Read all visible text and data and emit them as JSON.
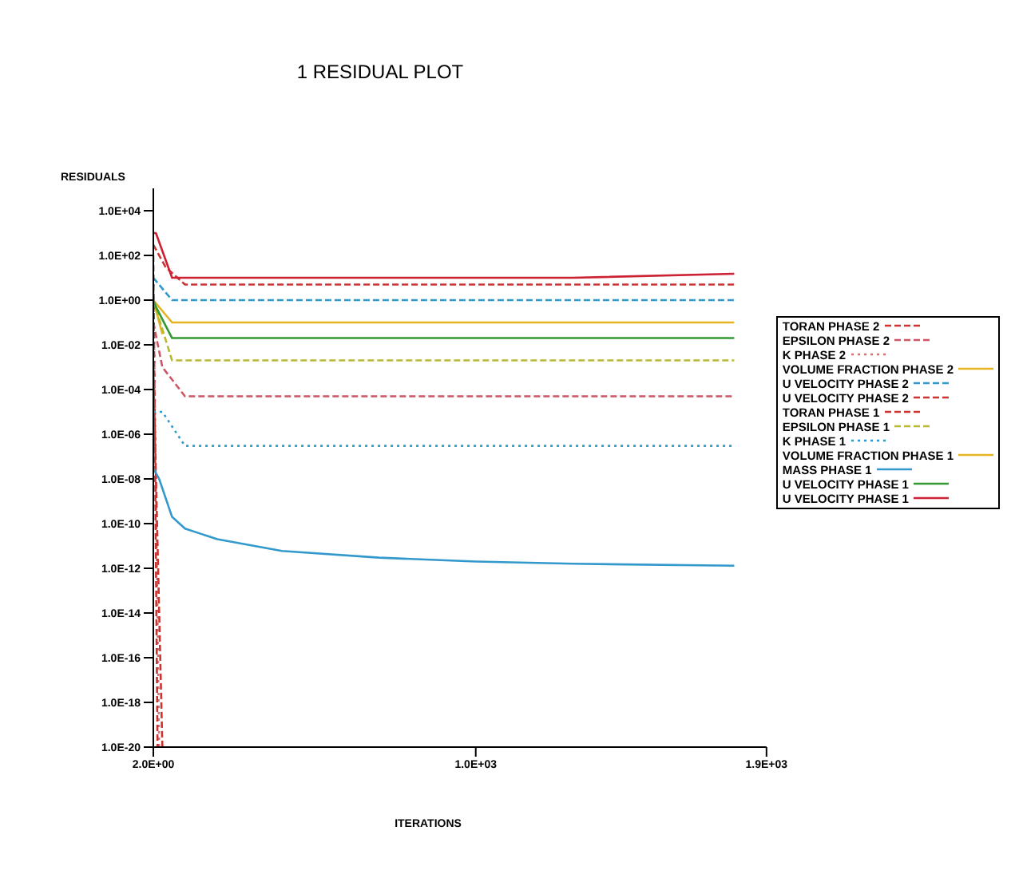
{
  "chart_data": {
    "type": "line",
    "title": "1 RESIDUAL PLOT",
    "ylabel": "RESIDUALS",
    "xlabel": "ITERATIONS",
    "log": "y",
    "grid": false,
    "legend": "right",
    "marker": "none",
    "xlim": [
      2,
      1900
    ],
    "xticks": [
      {
        "value": 2,
        "label": "2.0E+00"
      },
      {
        "value": 1000,
        "label": "1.0E+03"
      },
      {
        "value": 1900,
        "label": "1.9E+03"
      }
    ],
    "ylim": [
      1e-20,
      100000.0
    ],
    "yticks": [
      {
        "value": 1e-20,
        "label": "1.0E-20"
      },
      {
        "value": 1e-18,
        "label": "1.0E-18"
      },
      {
        "value": 1e-16,
        "label": "1.0E-16"
      },
      {
        "value": 1e-14,
        "label": "1.0E-14"
      },
      {
        "value": 1e-12,
        "label": "1.0E-12"
      },
      {
        "value": 1e-10,
        "label": "1.0E-10"
      },
      {
        "value": 1e-08,
        "label": "1.0E-08"
      },
      {
        "value": 1e-06,
        "label": "1.0E-06"
      },
      {
        "value": 0.0001,
        "label": "1.0E-04"
      },
      {
        "value": 0.01,
        "label": "1.0E-02"
      },
      {
        "value": 1,
        "label": "1.0E+00"
      },
      {
        "value": 100,
        "label": "1.0E+02"
      },
      {
        "value": 10000,
        "label": "1.0E+04"
      }
    ],
    "series": [
      {
        "name": "TORAN PHASE 2",
        "color": "#cc3333",
        "line_style": "dashed",
        "x": [
          2,
          40,
          100,
          1800
        ],
        "values": [
          300,
          30,
          5,
          5
        ]
      },
      {
        "name": "EPSILON PHASE 2",
        "color": "#cc5566",
        "line_style": "dashed",
        "x": [
          2,
          30,
          100,
          1800
        ],
        "values": [
          0.1,
          0.001,
          5e-05,
          5e-05
        ]
      },
      {
        "name": "K PHASE 2",
        "color": "#cc7777",
        "line_style": "dotted",
        "x": [
          2,
          20
        ],
        "values": [
          10,
          1e-20
        ]
      },
      {
        "name": "VOLUME FRACTION PHASE 2",
        "color": "#e6b422",
        "line_style": "solid",
        "x": [
          2,
          30
        ],
        "values": [
          1,
          0.03
        ]
      },
      {
        "name": "U VELOCITY PHASE 2",
        "color": "#3399cc",
        "line_style": "dashed",
        "x": [
          2,
          60,
          1800
        ],
        "values": [
          10,
          1,
          1
        ]
      },
      {
        "name": "U VELOCITY PHASE 2",
        "color": "#cc3333",
        "line_style": "dashed",
        "x": [
          2,
          15
        ],
        "values": [
          100,
          1e-20
        ]
      },
      {
        "name": "TORAN PHASE 1",
        "color": "#cc3333",
        "line_style": "dashed",
        "x": [
          2,
          30
        ],
        "values": [
          0.001,
          1e-20
        ]
      },
      {
        "name": "EPSILON PHASE 1",
        "color": "#b8b832",
        "line_style": "dashed",
        "x": [
          2,
          60,
          1800
        ],
        "values": [
          1,
          0.002,
          0.002
        ]
      },
      {
        "name": "K PHASE 1",
        "color": "#3399cc",
        "line_style": "dotted",
        "x": [
          2,
          30,
          100,
          1800
        ],
        "values": [
          1e-05,
          1e-05,
          3e-07,
          3e-07
        ]
      },
      {
        "name": "VOLUME FRACTION PHASE 1",
        "color": "#e6b422",
        "line_style": "solid",
        "x": [
          2,
          60,
          1800
        ],
        "values": [
          1,
          0.1,
          0.1
        ]
      },
      {
        "name": "MASS PHASE 1",
        "color": "#3399cc",
        "line_style": "solid",
        "x": [
          2,
          20,
          60,
          100,
          200,
          400,
          700,
          1000,
          1300,
          1800
        ],
        "values": [
          3e-08,
          1e-08,
          2e-10,
          6e-11,
          2e-11,
          6e-12,
          3e-12,
          2e-12,
          1.6e-12,
          1.3e-12
        ]
      },
      {
        "name": "U VELOCITY PHASE 1",
        "color": "#339933",
        "line_style": "solid",
        "x": [
          2,
          10,
          60,
          1800
        ],
        "values": [
          1,
          0.5,
          0.02,
          0.02
        ]
      },
      {
        "name": "U VELOCITY PHASE 1",
        "color": "#cc2233",
        "line_style": "solid",
        "x": [
          2,
          10,
          60,
          1300,
          1800
        ],
        "values": [
          1000,
          1000,
          10,
          10,
          15
        ]
      }
    ]
  }
}
